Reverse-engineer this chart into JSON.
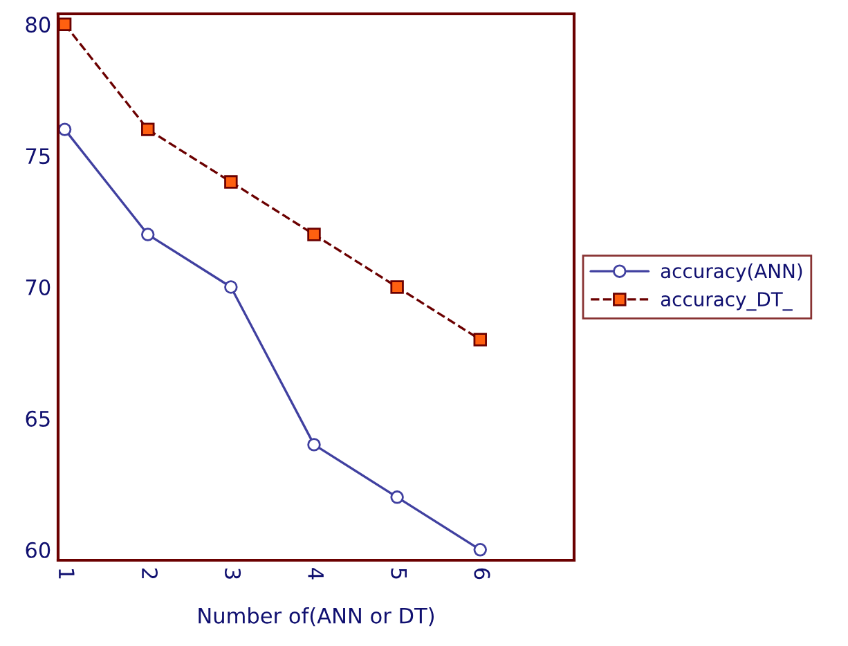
{
  "chart_data": {
    "type": "line",
    "xlabel": "Number of(ANN or DT)",
    "x": [
      1,
      2,
      3,
      4,
      5,
      6
    ],
    "series": [
      {
        "name": "accuracy(ANN)",
        "color": "#4040a0",
        "values": [
          76,
          72,
          70,
          64,
          62,
          60
        ],
        "marker": "circle",
        "line_style": "solid"
      },
      {
        "name": "accuracy_DT_",
        "color": "#ff6010",
        "values": [
          80,
          76,
          74,
          72,
          70,
          68
        ],
        "marker": "square",
        "line_style": "dashed"
      }
    ],
    "xlim": [
      0.92,
      7.13
    ],
    "xticks": [
      1,
      2,
      3,
      4,
      5,
      6
    ],
    "ylim": [
      59.6,
      80.4
    ],
    "yticks": [
      60,
      65,
      70,
      75,
      80
    ],
    "grid": false,
    "legend": "right"
  }
}
